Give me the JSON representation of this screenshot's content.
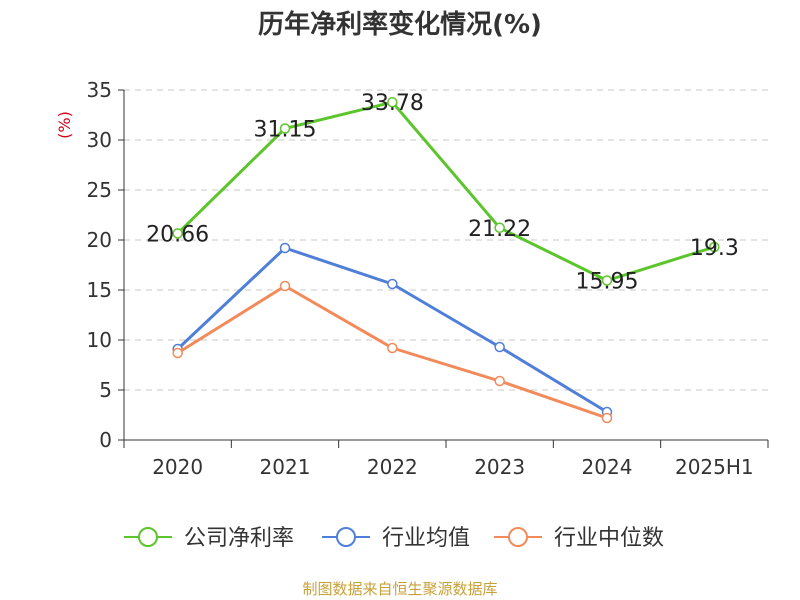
{
  "chart_data": {
    "type": "line",
    "title": "历年净利率变化情况(%)",
    "ylabel": "(%)",
    "categories": [
      "2020",
      "2021",
      "2022",
      "2023",
      "2024",
      "2025H1"
    ],
    "ylim": [
      0,
      35
    ],
    "yticks": [
      0,
      5,
      10,
      15,
      20,
      25,
      30,
      35
    ],
    "grid": true,
    "legend_position": "bottom",
    "series": [
      {
        "name": "公司净利率",
        "color": "#5cc52b",
        "values": [
          20.66,
          31.15,
          33.78,
          21.22,
          15.95,
          19.3
        ],
        "labels": [
          "20.66",
          "31.15",
          "33.78",
          "21.22",
          "15.95",
          "19.3"
        ],
        "show_labels": true
      },
      {
        "name": "行业均值",
        "color": "#4f7fd8",
        "values": [
          9.1,
          19.2,
          15.6,
          9.3,
          2.8,
          null
        ],
        "show_labels": false
      },
      {
        "name": "行业中位数",
        "color": "#f28a5a",
        "values": [
          8.7,
          15.4,
          9.2,
          5.9,
          2.2,
          null
        ],
        "show_labels": false
      }
    ],
    "source": "制图数据来自恒生聚源数据库"
  }
}
